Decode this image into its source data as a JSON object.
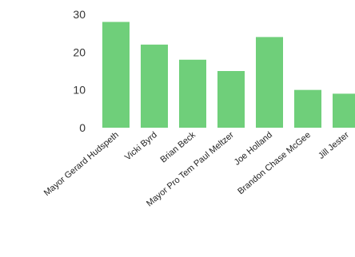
{
  "chart_data": {
    "type": "bar",
    "title": "",
    "xlabel": "",
    "ylabel": "",
    "categories": [
      "Mayor Gerard Hudspeth",
      "Vicki Byrd",
      "Brian Beck",
      "Mayor Pro Tem Paul Meltzer",
      "Joe Holland",
      "Brandon Chase McGee",
      "Jill Jester"
    ],
    "values": [
      28,
      22,
      18,
      15,
      24,
      10,
      9
    ],
    "ylim": [
      0,
      30
    ],
    "yticks": [
      0,
      10,
      20,
      30
    ],
    "grid": false,
    "legend": "none",
    "bar_color": "#6fcf7a"
  }
}
